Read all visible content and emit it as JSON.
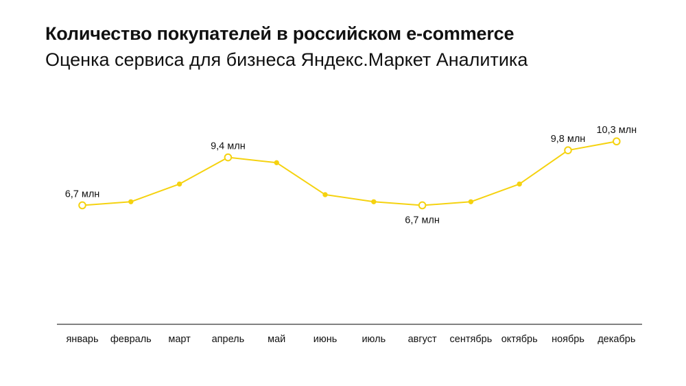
{
  "title": "Количество покупателей в российском e-commerce",
  "subtitle": "Оценка сервиса для бизнеса Яндекс.Маркет Аналитика",
  "colors": {
    "line": "#F5D20F",
    "text": "#111111",
    "axis": "#000000"
  },
  "chart_data": {
    "type": "line",
    "title": "Количество покупателей в российском e-commerce",
    "subtitle": "Оценка сервиса для бизнеса Яндекс.Маркет Аналитика",
    "xlabel": "",
    "ylabel": "",
    "grid": false,
    "legend": "none",
    "ylim": [
      0,
      13
    ],
    "categories": [
      "январь",
      "февраль",
      "март",
      "апрель",
      "май",
      "июнь",
      "июль",
      "август",
      "сентябрь",
      "октябрь",
      "ноябрь",
      "декабрь"
    ],
    "series": [
      {
        "values": [
          6.7,
          6.9,
          7.9,
          9.4,
          9.1,
          7.3,
          6.9,
          6.7,
          6.9,
          7.9,
          9.8,
          10.3
        ]
      }
    ],
    "annotations": [
      {
        "index": 0,
        "text": "6,7 млн",
        "position": "above"
      },
      {
        "index": 3,
        "text": "9,4 млн",
        "position": "above"
      },
      {
        "index": 7,
        "text": "6,7 млн",
        "position": "below"
      },
      {
        "index": 10,
        "text": "9,8 млн",
        "position": "above"
      },
      {
        "index": 11,
        "text": "10,3 млн",
        "position": "above"
      }
    ]
  }
}
